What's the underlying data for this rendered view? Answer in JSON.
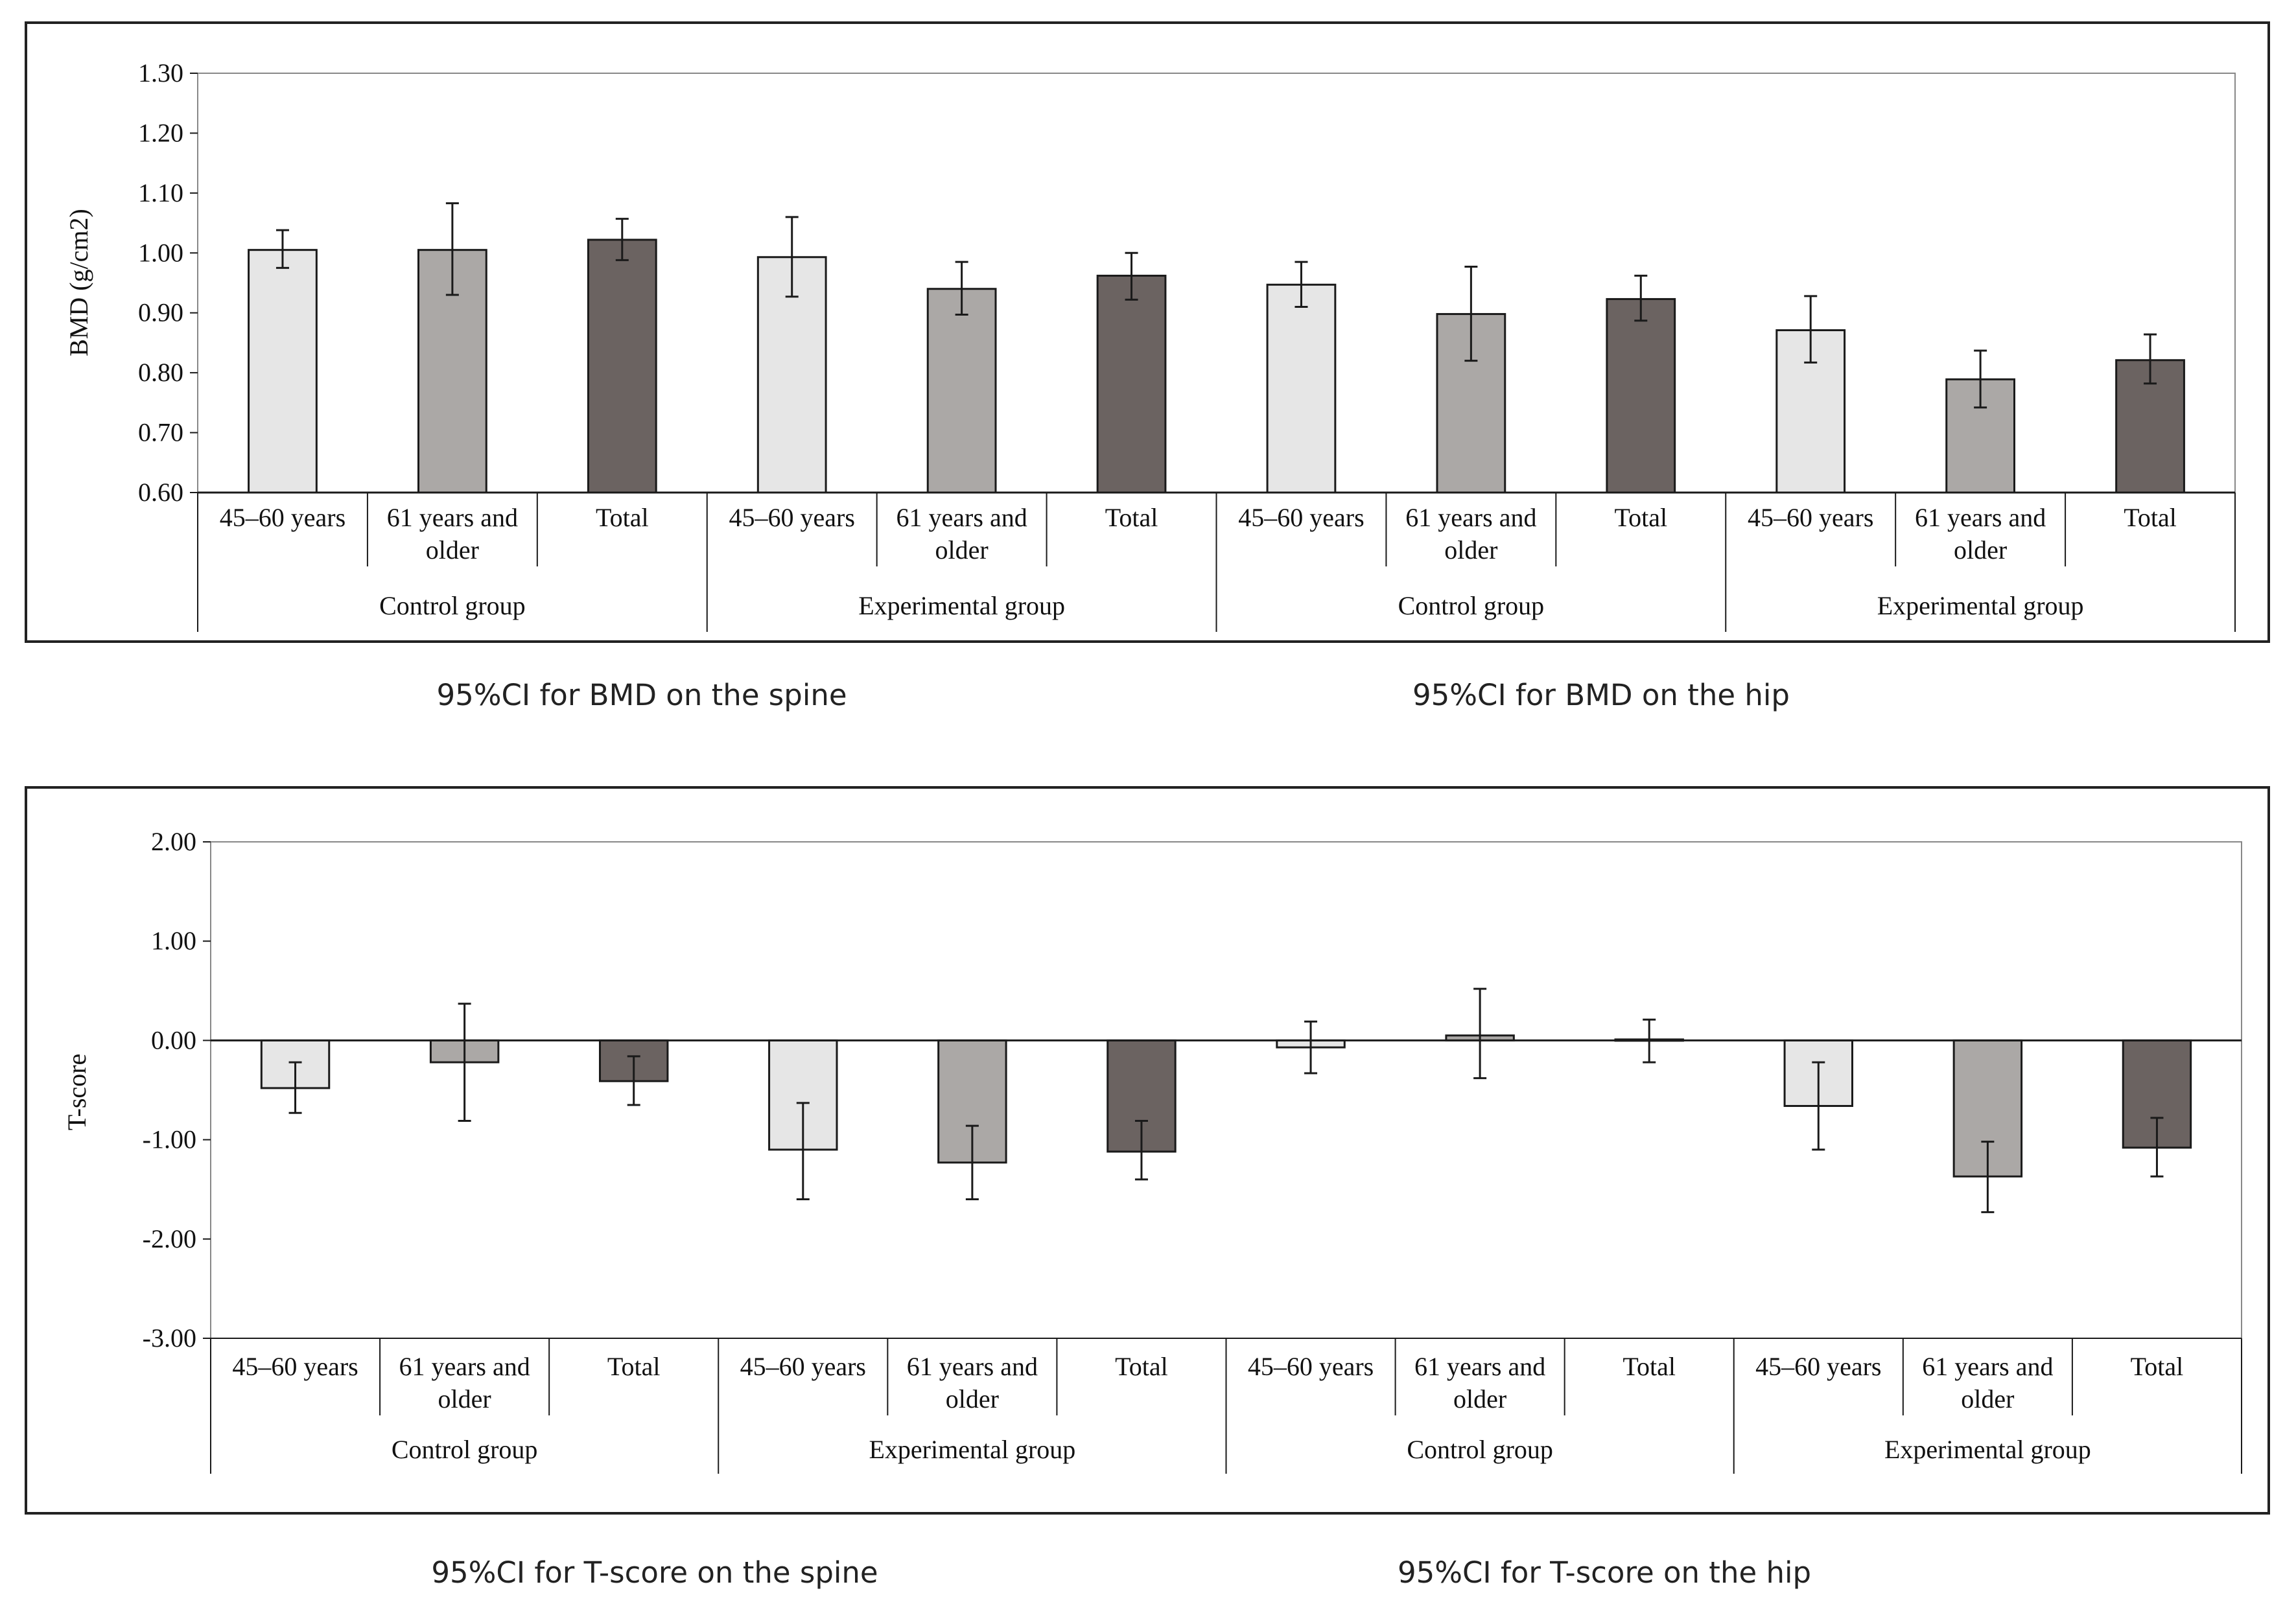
{
  "captions": {
    "bmd_spine": "95%CI for BMD on the spine",
    "bmd_hip": "95%CI for BMD on the hip",
    "t_spine": "95%CI for T-score on the spine",
    "t_hip": "95%CI for T-score on the hip"
  },
  "colors": {
    "light": "#e6e6e6",
    "mid": "#aba8a6",
    "dark": "#6b6361",
    "stroke": "#1a1a1a",
    "frame": "#222222",
    "axis": "#888888"
  },
  "chart_data": [
    {
      "type": "bar",
      "ylabel": "BMD (g/cm2)",
      "ylim": [
        0.6,
        1.3
      ],
      "yticks": [
        0.6,
        0.7,
        0.8,
        0.9,
        1.0,
        1.1,
        1.2,
        1.3
      ],
      "tick_decimals": 2,
      "baseline": 0.6,
      "categories": [
        "45–60 years",
        "61 years and older",
        "Total",
        "45–60 years",
        "61 years and older",
        "Total",
        "45–60  years",
        "61 years and older",
        "Total",
        "45–60 years",
        "61 years and older",
        "Total"
      ],
      "groups": [
        "Control group",
        "Experimental group",
        "Control group",
        "Experimental group"
      ],
      "values": [
        1.005,
        1.005,
        1.022,
        0.993,
        0.94,
        0.962,
        0.947,
        0.898,
        0.923,
        0.871,
        0.789,
        0.821
      ],
      "ci_low": [
        0.975,
        0.93,
        0.988,
        0.927,
        0.897,
        0.922,
        0.91,
        0.82,
        0.887,
        0.817,
        0.742,
        0.782
      ],
      "ci_high": [
        1.038,
        1.083,
        1.057,
        1.06,
        0.985,
        1.0,
        0.985,
        0.977,
        0.962,
        0.928,
        0.837,
        0.864
      ],
      "shades": [
        "light",
        "mid",
        "dark",
        "light",
        "mid",
        "dark",
        "light",
        "mid",
        "dark",
        "light",
        "mid",
        "dark"
      ]
    },
    {
      "type": "bar",
      "ylabel": "T-score",
      "ylim": [
        -3.0,
        2.0
      ],
      "yticks": [
        -3.0,
        -2.0,
        -1.0,
        0.0,
        1.0,
        2.0
      ],
      "tick_decimals": 2,
      "baseline": 0.0,
      "categories": [
        "45–60 years",
        "61 years and older",
        "Total",
        "45–60 years",
        "61 years and older",
        "Total",
        "45–60  years",
        "61 years and older",
        "Total",
        "45–60 years",
        "61 years and older",
        "Total"
      ],
      "groups": [
        "Control group",
        "Experimental group",
        "Control group",
        "Experimental group"
      ],
      "values": [
        -0.48,
        -0.22,
        -0.41,
        -1.1,
        -1.23,
        -1.12,
        -0.07,
        0.05,
        0.01,
        -0.66,
        -1.37,
        -1.08
      ],
      "ci_low": [
        -0.73,
        -0.81,
        -0.65,
        -1.6,
        -1.6,
        -1.4,
        -0.33,
        -0.38,
        -0.22,
        -1.1,
        -1.73,
        -1.37
      ],
      "ci_high": [
        -0.22,
        0.37,
        -0.16,
        -0.63,
        -0.86,
        -0.81,
        0.19,
        0.52,
        0.21,
        -0.22,
        -1.02,
        -0.78
      ],
      "shades": [
        "light",
        "mid",
        "dark",
        "light",
        "mid",
        "dark",
        "light",
        "mid",
        "dark",
        "light",
        "mid",
        "dark"
      ]
    }
  ]
}
